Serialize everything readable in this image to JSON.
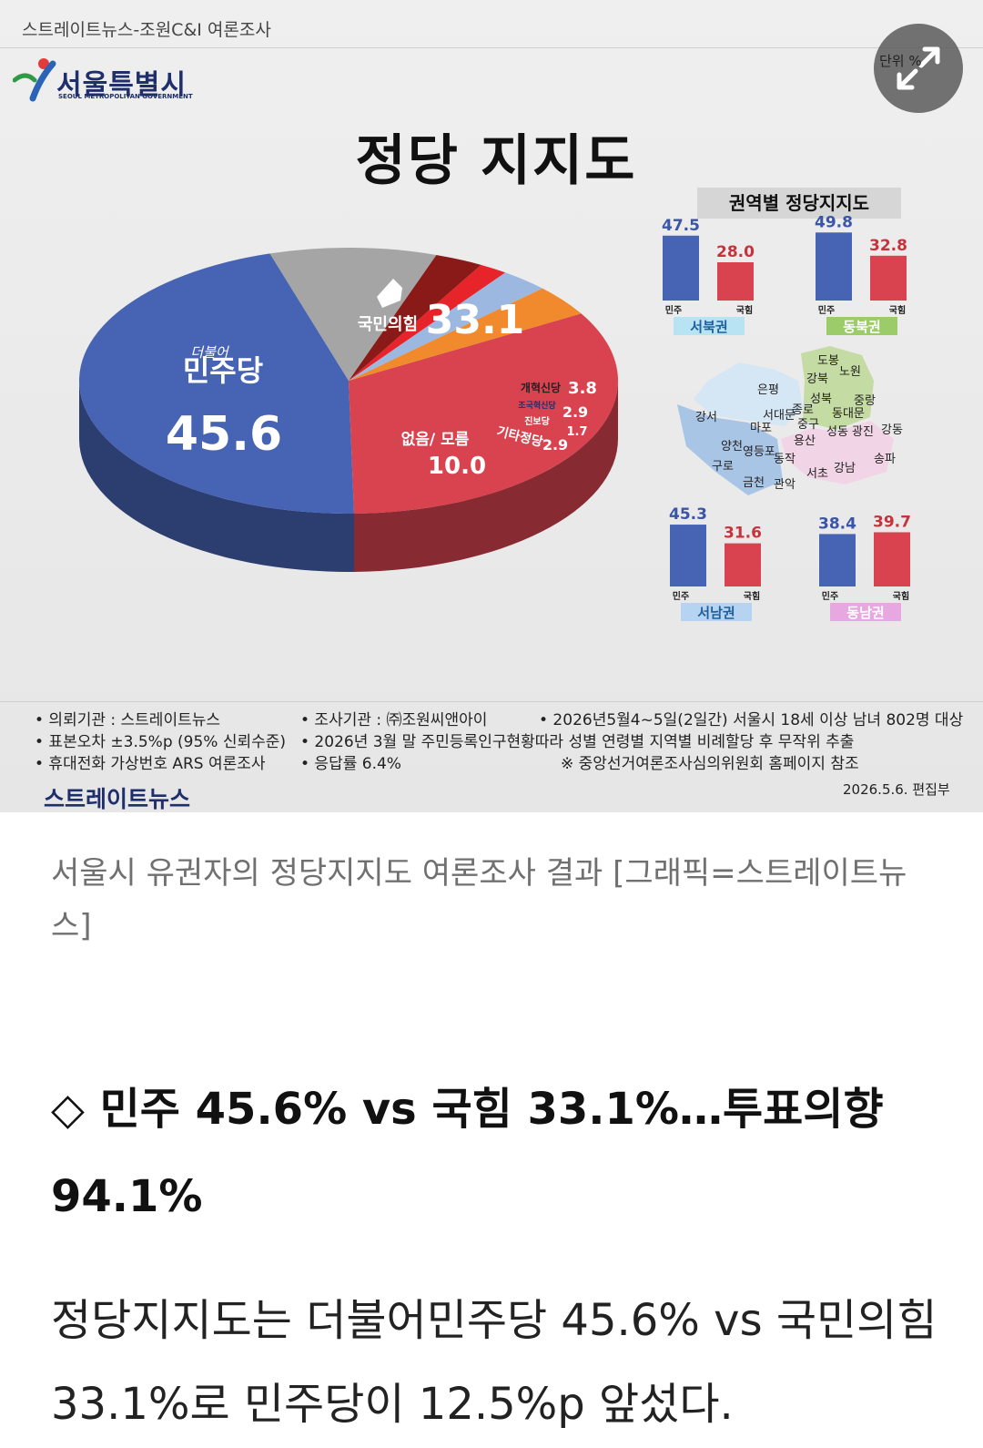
{
  "graphic": {
    "source_line": "스트레이트뉴스-조원C&I 여론조사",
    "logo_text": "서울특별시",
    "logo_sub": "SEOUL METROPOLITAN GOVERNMENT",
    "unit_label": "단위 %",
    "title": "정당 지지도",
    "colors": {
      "minju": "#4763b3",
      "gukhim": "#d9434f",
      "gaehyuk": "#f08a2c",
      "josaeng": "#9db8e0",
      "jinbo": "#e6242a",
      "gita": "#8a1a18",
      "none": "#a5a5a5"
    },
    "pie_labels": {
      "minju_small": "더불어",
      "minju_name": "민주당",
      "gukhim_name": "국민의힘",
      "gaehyuk_name": "개혁신당",
      "josaeng_name": "조국혁신당",
      "jinbo_name": "진보당",
      "gita_name": "기타정당",
      "none_name": "없음/ 모름"
    },
    "region_title": "권역별 정당지지도",
    "map_labels": [
      "도봉",
      "노원",
      "강북",
      "은평",
      "성북",
      "중랑",
      "종로",
      "서대문",
      "동대문",
      "강서",
      "마포",
      "중구",
      "성동",
      "광진",
      "강동",
      "용산",
      "양천",
      "영등포",
      "동작",
      "구로",
      "서초",
      "강남",
      "송파",
      "금천",
      "관악"
    ],
    "footer": {
      "col1": [
        "• 의뢰기관 : 스트레이트뉴스",
        "• 표본오차 ±3.5%p (95% 신뢰수준)",
        "• 휴대전화 가상번호 ARS 여론조사"
      ],
      "col2": [
        "• 조사기관 : ㈜조원씨앤아이",
        "• 2026년 3월 말 주민등록인구현황따라 성별 연령별 지역별 비례할당 후 무작위 추출",
        "• 응답률 6.4%"
      ],
      "col3": [
        "• 2026년5월4~5일(2일간) 서울시 18세 이상 남녀 802명 대상",
        "※ 중앙선거여론조사심의위원회 홈페이지 참조"
      ],
      "brand": "스트레이트뉴스",
      "date": "2026.5.6. 편집부"
    }
  },
  "chart_data": [
    {
      "type": "pie",
      "title": "정당 지지도",
      "categories": [
        "더불어민주당",
        "국민의힘",
        "개혁신당",
        "조국혁신당",
        "진보당",
        "기타정당",
        "없음/ 모름"
      ],
      "values": [
        45.6,
        33.1,
        3.8,
        2.9,
        1.7,
        2.9,
        10.0
      ],
      "value_labels": [
        "45.6",
        "33.1",
        "3.8",
        "2.9",
        "1.7",
        "2.9",
        "10.0"
      ]
    },
    {
      "type": "bar",
      "title": "권역별 정당지지도",
      "regions": [
        {
          "name": "서북권",
          "categories": [
            "민주",
            "국힘"
          ],
          "values": [
            47.5,
            28.0
          ],
          "labels": [
            "47.5",
            "28.0"
          ]
        },
        {
          "name": "동북권",
          "categories": [
            "민주",
            "국힘"
          ],
          "values": [
            49.8,
            32.8
          ],
          "labels": [
            "49.8",
            "32.8"
          ]
        },
        {
          "name": "서남권",
          "categories": [
            "민주",
            "국힘"
          ],
          "values": [
            45.3,
            31.6
          ],
          "labels": [
            "45.3",
            "31.6"
          ]
        },
        {
          "name": "동남권",
          "categories": [
            "민주",
            "국힘"
          ],
          "values": [
            38.4,
            39.7
          ],
          "labels": [
            "38.4",
            "39.7"
          ]
        }
      ]
    }
  ],
  "article": {
    "caption": "서울시 유권자의 정당지지도 여론조사 결과 [그래픽=스트레이트뉴스]",
    "headline": "◇ 민주 45.6% vs 국힘 33.1%…투표의향 94.1%",
    "body": "정당지지도는 더불어민주당 45.6% vs 국민의힘 33.1%로 민주당이 12.5%p 앞섰다."
  }
}
